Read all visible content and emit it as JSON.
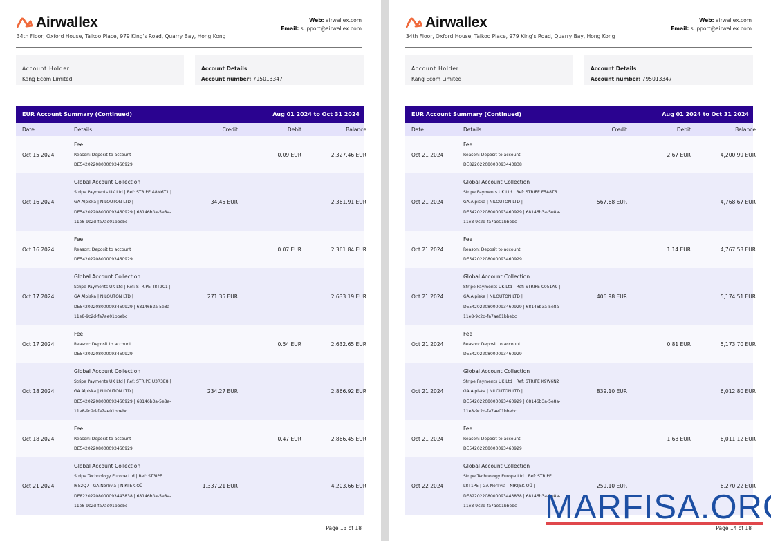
{
  "brand": {
    "name": "Airwallex",
    "logo_color": "#f06a3c",
    "address": "34th Floor, Oxford House, Taikoo Place, 979 King's Road, Quarry Bay, Hong Kong",
    "web_label": "Web:",
    "web": "airwallex.com",
    "email_label": "Email:",
    "email": "support@airwallex.com"
  },
  "account": {
    "holder_label": "Account Holder",
    "holder": "Kang Ecom Limited",
    "details_label": "Account Details",
    "number_label": "Account number:",
    "number": "795013347"
  },
  "table": {
    "title": "EUR Account Summary (Continued)",
    "period": "Aug 01 2024 to Oct 31 2024",
    "header_color": "#2a0390",
    "columns": [
      "Date",
      "Details",
      "Credit",
      "Debit",
      "Balance"
    ]
  },
  "pages": [
    {
      "footer": "Page 13 of 18",
      "rows": [
        {
          "type": "fee",
          "date": "Oct 15 2024",
          "title": "Fee",
          "lines": [
            "Reason: Deposit to account",
            "DE54202208000093460929"
          ],
          "credit": "",
          "debit": "0.09 EUR",
          "balance": "2,327.46 EUR"
        },
        {
          "type": "gac",
          "date": "Oct 16 2024",
          "title": "Global Account Collection",
          "lines": [
            "Stripe Payments UK Ltd | Ref: STRIPE A8M6T1 |",
            "GA Alpiska | NILOUTON LTD |",
            "DE54202208000093460929 | 68146b3a-5e8a-",
            "11e8-9c2d-fa7ae01bbebc"
          ],
          "credit": "34.45 EUR",
          "debit": "",
          "balance": "2,361.91 EUR"
        },
        {
          "type": "fee",
          "date": "Oct 16 2024",
          "title": "Fee",
          "lines": [
            "Reason: Deposit to account",
            "DE54202208000093460929"
          ],
          "credit": "",
          "debit": "0.07 EUR",
          "balance": "2,361.84 EUR"
        },
        {
          "type": "gac",
          "date": "Oct 17 2024",
          "title": "Global Account Collection",
          "lines": [
            "Stripe Payments UK Ltd | Ref: STRIPE T8T9C1 |",
            "GA Alpiska | NILOUTON LTD |",
            "DE54202208000093460929 | 68146b3a-5e8a-",
            "11e8-9c2d-fa7ae01bbebc"
          ],
          "credit": "271.35 EUR",
          "debit": "",
          "balance": "2,633.19 EUR"
        },
        {
          "type": "fee",
          "date": "Oct 17 2024",
          "title": "Fee",
          "lines": [
            "Reason: Deposit to account",
            "DE54202208000093460929"
          ],
          "credit": "",
          "debit": "0.54 EUR",
          "balance": "2,632.65 EUR"
        },
        {
          "type": "gac",
          "date": "Oct 18 2024",
          "title": "Global Account Collection",
          "lines": [
            "Stripe Payments UK Ltd | Ref: STRIPE U3R3E8 |",
            "GA Alpiska | NILOUTON LTD |",
            "DE54202208000093460929 | 68146b3a-5e8a-",
            "11e8-9c2d-fa7ae01bbebc"
          ],
          "credit": "234.27 EUR",
          "debit": "",
          "balance": "2,866.92 EUR"
        },
        {
          "type": "fee",
          "date": "Oct 18 2024",
          "title": "Fee",
          "lines": [
            "Reason: Deposit to account",
            "DE54202208000093460929"
          ],
          "credit": "",
          "debit": "0.47 EUR",
          "balance": "2,866.45 EUR"
        },
        {
          "type": "gac",
          "date": "Oct 21 2024",
          "title": "Global Account Collection",
          "lines": [
            "Stripe Technology Europe Ltd | Ref: STRIPE",
            "I652Q7 | GA Norlivia | NIKIJEK OÜ |",
            "DE82202208000093443838 | 68146b3a-5e8a-",
            "11e8-9c2d-fa7ae01bbebc"
          ],
          "credit": "1,337.21 EUR",
          "debit": "",
          "balance": "4,203.66 EUR"
        }
      ]
    },
    {
      "footer": "Page 14 of 18",
      "rows": [
        {
          "type": "fee",
          "date": "Oct 21 2024",
          "title": "Fee",
          "lines": [
            "Reason: Deposit to account",
            "DE82202208000093443838"
          ],
          "credit": "",
          "debit": "2.67 EUR",
          "balance": "4,200.99 EUR"
        },
        {
          "type": "gac",
          "date": "Oct 21 2024",
          "title": "Global Account Collection",
          "lines": [
            "Stripe Payments UK Ltd | Ref: STRIPE F5A8T6 |",
            "GA Alpiska | NILOUTON LTD |",
            "DE54202208000093460929 | 68146b3a-5e8a-",
            "11e8-9c2d-fa7ae01bbebc"
          ],
          "credit": "567.68 EUR",
          "debit": "",
          "balance": "4,768.67 EUR"
        },
        {
          "type": "fee",
          "date": "Oct 21 2024",
          "title": "Fee",
          "lines": [
            "Reason: Deposit to account",
            "DE54202208000093460929"
          ],
          "credit": "",
          "debit": "1.14 EUR",
          "balance": "4,767.53 EUR"
        },
        {
          "type": "gac",
          "date": "Oct 21 2024",
          "title": "Global Account Collection",
          "lines": [
            "Stripe Payments UK Ltd | Ref: STRIPE C051A9 |",
            "GA Alpiska | NILOUTON LTD |",
            "DE54202208000093460929 | 68146b3a-5e8a-",
            "11e8-9c2d-fa7ae01bbebc"
          ],
          "credit": "406.98 EUR",
          "debit": "",
          "balance": "5,174.51 EUR"
        },
        {
          "type": "fee",
          "date": "Oct 21 2024",
          "title": "Fee",
          "lines": [
            "Reason: Deposit to account",
            "DE54202208000093460929"
          ],
          "credit": "",
          "debit": "0.81 EUR",
          "balance": "5,173.70 EUR"
        },
        {
          "type": "gac",
          "date": "Oct 21 2024",
          "title": "Global Account Collection",
          "lines": [
            "Stripe Payments UK Ltd | Ref: STRIPE K9W6N2 |",
            "GA Alpiska | NILOUTON LTD |",
            "DE54202208000093460929 | 68146b3a-5e8a-",
            "11e8-9c2d-fa7ae01bbebc"
          ],
          "credit": "839.10 EUR",
          "debit": "",
          "balance": "6,012.80 EUR"
        },
        {
          "type": "fee",
          "date": "Oct 21 2024",
          "title": "Fee",
          "lines": [
            "Reason: Deposit to account",
            "DE54202208000093460929"
          ],
          "credit": "",
          "debit": "1.68 EUR",
          "balance": "6,011.12 EUR"
        },
        {
          "type": "gac",
          "date": "Oct 22 2024",
          "title": "Global Account Collection",
          "lines": [
            "Stripe Technology Europe Ltd | Ref: STRIPE",
            "L8T1P5 | GA Norlivia | NIKIJEK OÜ |",
            "DE82202208000093443838 | 68146b3a-5e8a-",
            "11e8-9c2d-fa7ae01bbebc"
          ],
          "credit": "259.10 EUR",
          "debit": "",
          "balance": "6,270.22 EUR"
        }
      ]
    }
  ],
  "watermark": {
    "text": "MARFISA.ORG",
    "color": "#1d4fa3",
    "underline_color": "#e0474c"
  }
}
